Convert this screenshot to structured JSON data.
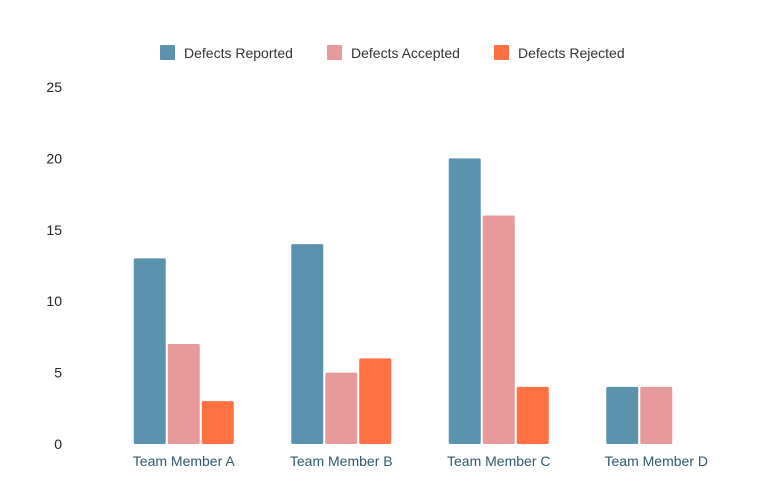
{
  "chart_data": {
    "type": "bar",
    "title": "",
    "xlabel": "",
    "ylabel": "",
    "categories": [
      "Team Member A",
      "Team Member B",
      "Team Member C",
      "Team Member D"
    ],
    "series": [
      {
        "name": "Defects Reported",
        "color": "#5b93af",
        "values": [
          13,
          14,
          20,
          4
        ]
      },
      {
        "name": "Defects Accepted",
        "color": "#e89a9a",
        "values": [
          7,
          5,
          16,
          4
        ]
      },
      {
        "name": "Defects Rejected",
        "color": "#ff7140",
        "values": [
          3,
          6,
          4,
          0
        ]
      }
    ],
    "yticks": [
      "0",
      "5",
      "10",
      "15",
      "20",
      "25"
    ],
    "ylim": [
      0,
      25
    ],
    "grid": false,
    "legend_position": "top-center"
  }
}
